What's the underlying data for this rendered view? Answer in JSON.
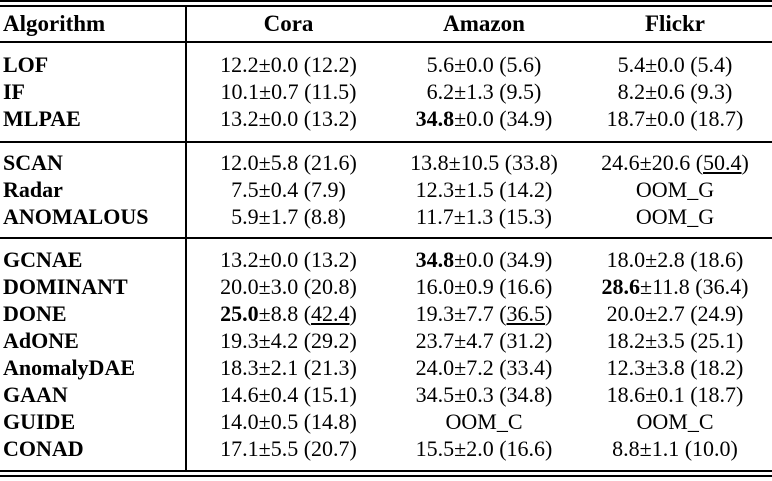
{
  "table": {
    "columns": [
      "Algorithm",
      "Cora",
      "Amazon",
      "Flickr"
    ],
    "sections": [
      {
        "rows": [
          {
            "algo": "LOF",
            "cells": [
              [
                {
                  "t": "12.2±0.0 (12.2)"
                }
              ],
              [
                {
                  "t": "5.6±0.0 (5.6)"
                }
              ],
              [
                {
                  "t": "5.4±0.0 (5.4)"
                }
              ]
            ]
          },
          {
            "algo": "IF",
            "cells": [
              [
                {
                  "t": "10.1±0.7 (11.5)"
                }
              ],
              [
                {
                  "t": "6.2±1.3 (9.5)"
                }
              ],
              [
                {
                  "t": "8.2±0.6 (9.3)"
                }
              ]
            ]
          },
          {
            "algo": "MLPAE",
            "cells": [
              [
                {
                  "t": "13.2±0.0 (13.2)"
                }
              ],
              [
                {
                  "t": "34.8",
                  "b": true
                },
                {
                  "t": "±0.0 (34.9)"
                }
              ],
              [
                {
                  "t": "18.7±0.0 (18.7)"
                }
              ]
            ]
          }
        ]
      },
      {
        "rows": [
          {
            "algo": "SCAN",
            "cells": [
              [
                {
                  "t": "12.0±5.8 (21.6)"
                }
              ],
              [
                {
                  "t": "13.8±10.5 (33.8)"
                }
              ],
              [
                {
                  "t": "24.6±20.6 ("
                },
                {
                  "t": "50.4",
                  "u": true
                },
                {
                  "t": ")"
                }
              ]
            ]
          },
          {
            "algo": "Radar",
            "cells": [
              [
                {
                  "t": "7.5±0.4 (7.9)"
                }
              ],
              [
                {
                  "t": "12.3±1.5 (14.2)"
                }
              ],
              [
                {
                  "t": "OOM_G"
                }
              ]
            ]
          },
          {
            "algo": "ANOMALOUS",
            "cells": [
              [
                {
                  "t": "5.9±1.7 (8.8)"
                }
              ],
              [
                {
                  "t": "11.7±1.3 (15.3)"
                }
              ],
              [
                {
                  "t": "OOM_G"
                }
              ]
            ]
          }
        ]
      },
      {
        "rows": [
          {
            "algo": "GCNAE",
            "cells": [
              [
                {
                  "t": "13.2±0.0 (13.2)"
                }
              ],
              [
                {
                  "t": "34.8",
                  "b": true
                },
                {
                  "t": "±0.0 (34.9)"
                }
              ],
              [
                {
                  "t": "18.0±2.8 (18.6)"
                }
              ]
            ]
          },
          {
            "algo": "DOMINANT",
            "cells": [
              [
                {
                  "t": "20.0±3.0 (20.8)"
                }
              ],
              [
                {
                  "t": "16.0±0.9 (16.6)"
                }
              ],
              [
                {
                  "t": "28.6",
                  "b": true
                },
                {
                  "t": "±11.8 (36.4)"
                }
              ]
            ]
          },
          {
            "algo": "DONE",
            "cells": [
              [
                {
                  "t": "25.0",
                  "b": true
                },
                {
                  "t": "±8.8 ("
                },
                {
                  "t": "42.4",
                  "u": true
                },
                {
                  "t": ")"
                }
              ],
              [
                {
                  "t": "19.3±7.7 ("
                },
                {
                  "t": "36.5",
                  "u": true
                },
                {
                  "t": ")"
                }
              ],
              [
                {
                  "t": "20.0±2.7 (24.9)"
                }
              ]
            ]
          },
          {
            "algo": "AdONE",
            "cells": [
              [
                {
                  "t": "19.3±4.2 (29.2)"
                }
              ],
              [
                {
                  "t": "23.7±4.7 (31.2)"
                }
              ],
              [
                {
                  "t": "18.2±3.5 (25.1)"
                }
              ]
            ]
          },
          {
            "algo": "AnomalyDAE",
            "cells": [
              [
                {
                  "t": "18.3±2.1 (21.3)"
                }
              ],
              [
                {
                  "t": "24.0±7.2 (33.4)"
                }
              ],
              [
                {
                  "t": "12.3±3.8 (18.2)"
                }
              ]
            ]
          },
          {
            "algo": "GAAN",
            "cells": [
              [
                {
                  "t": "14.6±0.4 (15.1)"
                }
              ],
              [
                {
                  "t": "34.5±0.3 (34.8)"
                }
              ],
              [
                {
                  "t": "18.6±0.1 (18.7)"
                }
              ]
            ]
          },
          {
            "algo": "GUIDE",
            "cells": [
              [
                {
                  "t": "14.0±0.5 (14.8)"
                }
              ],
              [
                {
                  "t": "OOM_C"
                }
              ],
              [
                {
                  "t": "OOM_C"
                }
              ]
            ]
          },
          {
            "algo": "CONAD",
            "cells": [
              [
                {
                  "t": "17.1±5.5 (20.7)"
                }
              ],
              [
                {
                  "t": "15.5±2.0 (16.6)"
                }
              ],
              [
                {
                  "t": "8.8±1.1 (10.0)"
                }
              ]
            ]
          }
        ]
      }
    ]
  },
  "colors": {
    "text": "#000000",
    "background": "#ffffff",
    "rule": "#000000"
  }
}
